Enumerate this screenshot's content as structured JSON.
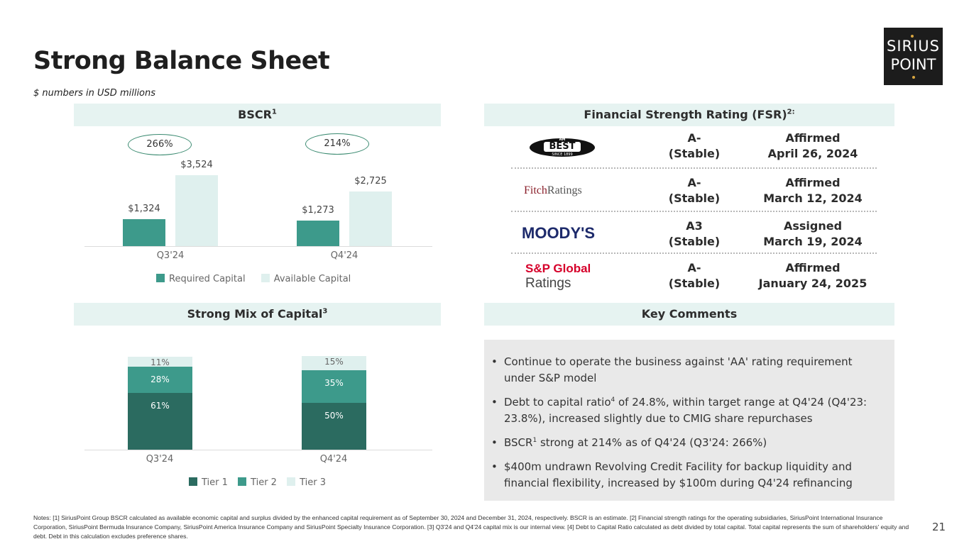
{
  "header": {
    "title": "Strong Balance Sheet",
    "subtitle": "$ numbers in USD millions"
  },
  "logo": {
    "line1": "SIRIUS",
    "line2": "POINT",
    "dot_color": "#d9a640"
  },
  "bscr": {
    "heading": "BSCR",
    "heading_sup": "1",
    "legend": {
      "required": "Required Capital",
      "available": "Available Capital"
    },
    "colors": {
      "required": "#3d9a8b",
      "available": "#dff0ee"
    }
  },
  "mix": {
    "heading": "Strong Mix of Capital",
    "heading_sup": "3",
    "legend": {
      "tier1": "Tier 1",
      "tier2": "Tier 2",
      "tier3": "Tier 3"
    },
    "colors": {
      "tier1": "#2b6b60",
      "tier2": "#3d9a8b",
      "tier3": "#dff0ee"
    }
  },
  "chart_data": [
    {
      "type": "bar",
      "title": "BSCR",
      "categories": [
        "Q3'24",
        "Q4'24"
      ],
      "series": [
        {
          "name": "Required Capital",
          "values": [
            1324,
            1273
          ],
          "labels": [
            "$1,324",
            "$1,273"
          ]
        },
        {
          "name": "Available Capital",
          "values": [
            3524,
            2725
          ],
          "labels": [
            "$3,524",
            "$2,725"
          ]
        }
      ],
      "annotations": [
        "266%",
        "214%"
      ],
      "ylim": [
        0,
        3700
      ]
    },
    {
      "type": "bar",
      "stacked": true,
      "title": "Strong Mix of Capital",
      "categories": [
        "Q3'24",
        "Q4'24"
      ],
      "series": [
        {
          "name": "Tier 1",
          "values": [
            61,
            50
          ],
          "labels": [
            "61%",
            "50%"
          ]
        },
        {
          "name": "Tier 2",
          "values": [
            28,
            35
          ],
          "labels": [
            "28%",
            "35%"
          ]
        },
        {
          "name": "Tier 3",
          "values": [
            11,
            15
          ],
          "labels": [
            "11%",
            "15%"
          ]
        }
      ],
      "ylim": [
        0,
        100
      ]
    }
  ],
  "fsr": {
    "heading": "Financial Strength Rating (FSR)",
    "heading_sup": "2:",
    "rows": [
      {
        "agency": "AM BEST",
        "agency_top": "AM",
        "agency_main": "BEST",
        "agency_bottom": "SINCE 1899",
        "rating": "A-",
        "outlook": "(Stable)",
        "action": "Affirmed",
        "date": "April 26, 2024"
      },
      {
        "agency": "FitchRatings",
        "agency_a": "Fitch",
        "agency_b": "Ratings",
        "rating": "A-",
        "outlook": "(Stable)",
        "action": "Affirmed",
        "date": "March 12, 2024"
      },
      {
        "agency": "MOODY'S",
        "rating": "A3",
        "outlook": "(Stable)",
        "action": "Assigned",
        "date": "March 19, 2024"
      },
      {
        "agency_a": "S&P Global",
        "agency_b": "Ratings",
        "rating": "A-",
        "outlook": "(Stable)",
        "action": "Affirmed",
        "date": "January 24, 2025"
      }
    ]
  },
  "key_comments": {
    "heading": "Key Comments",
    "items": [
      {
        "text": "Continue to operate the business against 'AA' rating requirement under S&P model"
      },
      {
        "pre": "Debt to capital ratio",
        "sup": "4",
        "post": " of 24.8%, within target range at Q4'24 (Q4'23: 23.8%), increased slightly due to CMIG share repurchases"
      },
      {
        "pre": "BSCR",
        "sup": "1",
        "post": " strong at 214% as of Q4'24 (Q3'24: 266%)"
      },
      {
        "text": "$400m undrawn Revolving Credit Facility for backup liquidity and financial flexibility, increased by $100m during Q4'24 refinancing"
      }
    ]
  },
  "footer": {
    "notes": "Notes: [1] SiriusPoint Group BSCR calculated as available economic capital and surplus divided by the enhanced capital requirement as of September 30, 2024 and December 31, 2024, respectively. BSCR is an estimate. [2] Financial strength ratings for the operating subsidiaries, SiriusPoint International Insurance Corporation, SiriusPoint Bermuda Insurance Company, SiriusPoint America Insurance Company and SiriusPoint Specialty Insurance Corporation. [3] Q3'24 and Q4'24 capital mix is our internal view. [4] Debt to Capital Ratio calculated as debt divided by total capital. Total capital represents the sum of shareholders' equity and debt. Debt in this calculation excludes preference shares.",
    "page": "21"
  }
}
